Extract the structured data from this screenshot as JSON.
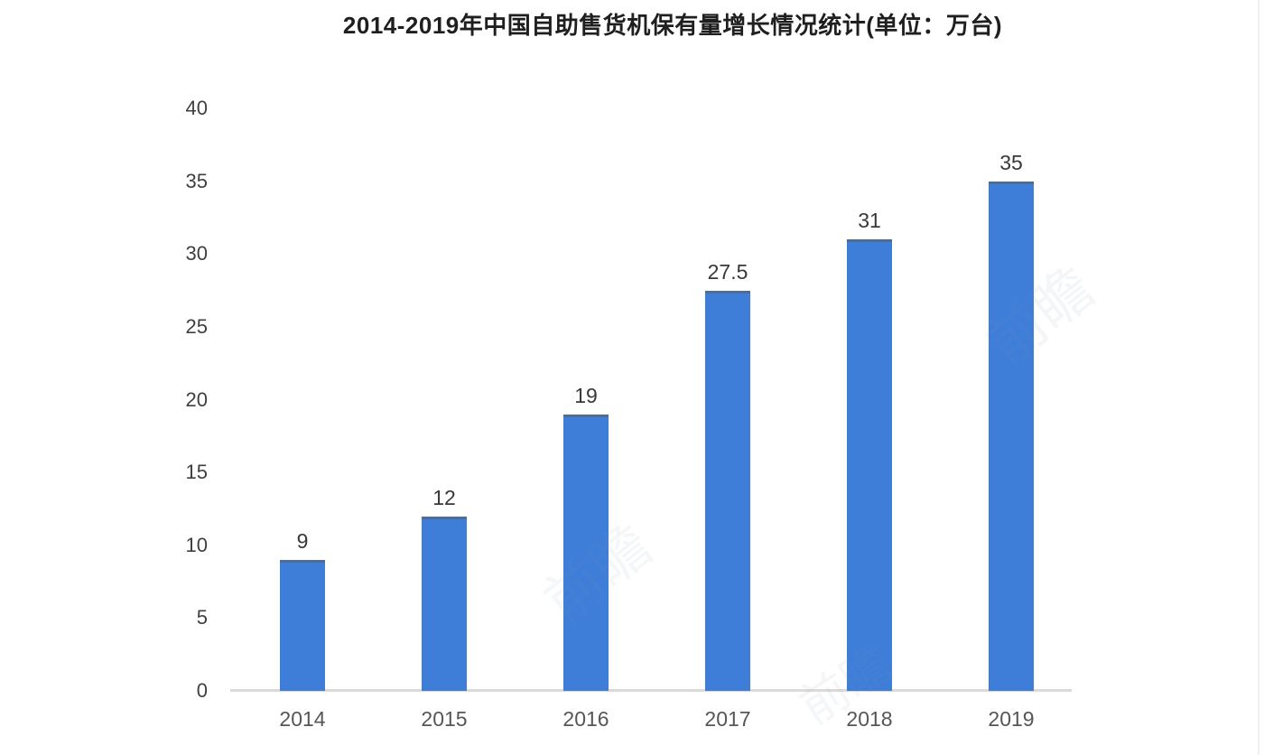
{
  "chart_data": {
    "type": "bar",
    "title": "2014-2019年中国自助售货机保有量增长情况统计(单位：万台)",
    "categories": [
      "2014",
      "2015",
      "2016",
      "2017",
      "2018",
      "2019"
    ],
    "values": [
      9,
      12,
      19,
      27.5,
      31,
      35
    ],
    "value_labels": [
      "9",
      "12",
      "19",
      "27.5",
      "31",
      "35"
    ],
    "xlabel": "",
    "ylabel": "",
    "ylim": [
      0,
      40
    ],
    "ytick_step": 5,
    "ytick_labels": [
      "0",
      "5",
      "10",
      "15",
      "20",
      "25",
      "30",
      "35",
      "40"
    ],
    "grid": false,
    "legend_position": "none",
    "bar_color": "#3e7ed9",
    "bar_top_edge_color": "#4f6c92",
    "axis_line_color": "#dadada",
    "title_color": "#1f1f1f",
    "tick_label_color": "#3f3f3f",
    "value_label_color": "#383838"
  },
  "watermarks": [
    {
      "text": "前瞻"
    },
    {
      "text": "前瞻"
    },
    {
      "text": "前瞻"
    }
  ]
}
